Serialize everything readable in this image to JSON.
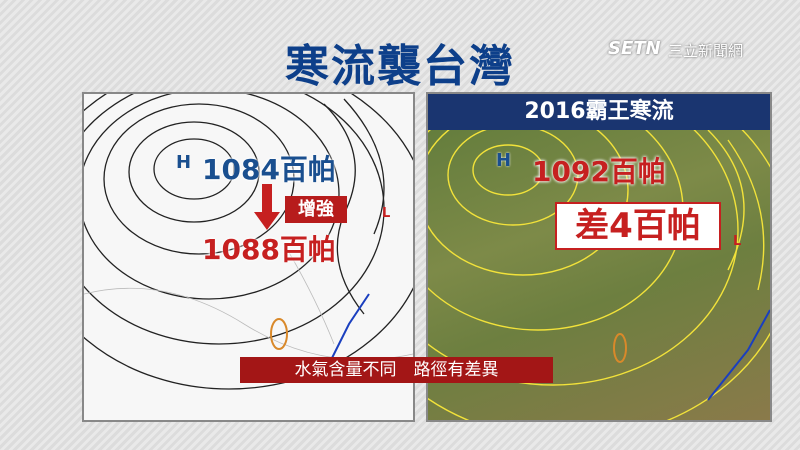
{
  "header": {
    "title": "寒流襲台灣",
    "logo": "SETN",
    "logo_sub": "三立新聞網"
  },
  "left_panel": {
    "high_label": "1084百帕",
    "arrow_label": "增強",
    "new_label": "1088百帕",
    "high_symbol": "H",
    "low_symbol": "L"
  },
  "right_panel": {
    "title": "2016霸王寒流",
    "high_label": "1092百帕",
    "difference": "差4百帕",
    "high_symbol": "H",
    "low_symbol": "L"
  },
  "caption": "水氣含量不同　路徑有差異"
}
